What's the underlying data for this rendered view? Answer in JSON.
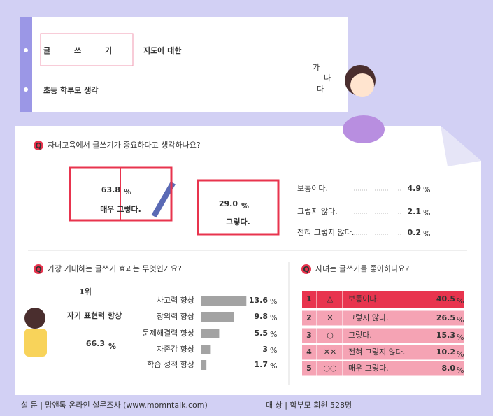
{
  "title": {
    "boxed": [
      "글",
      "쓰",
      "기"
    ],
    "rest": "지도에 대한",
    "line2": "초등 학부모 생각"
  },
  "deco": [
    "가",
    "나",
    "다"
  ],
  "icon": "Q",
  "unit": "%",
  "chart_data": [
    {
      "type": "highlight",
      "question": "자녀교육에서 글쓰기가 중요하다고 생각하나요?",
      "categories": [
        "매우 그렇다.",
        "그렇다.",
        "보통이다.",
        "그렇지 않다.",
        "전혀 그렇지 않다."
      ],
      "values": [
        63.8,
        29.0,
        4.9,
        2.1,
        0.2
      ],
      "value_labels": [
        "63.8",
        "29.0",
        "4.9",
        "2.1",
        "0.2"
      ],
      "color": "#e8344e"
    },
    {
      "type": "bar",
      "question": "가장 기대하는 글쓰기 효과는 무엇인가요?",
      "top": {
        "rank": "1위",
        "name": "자기 표현력 향상",
        "value": 66.3
      },
      "categories": [
        "사고력 향상",
        "창의력 향상",
        "문제해결력 향상",
        "자존감 향상",
        "학습 성적 향상"
      ],
      "values": [
        13.6,
        9.8,
        5.5,
        3.0,
        1.7
      ],
      "color": "#a3a3a3"
    },
    {
      "type": "rank",
      "question": "자녀는 글쓰기를 좋아하나요?",
      "ranks": [
        1,
        2,
        3,
        4,
        5
      ],
      "symbols": [
        "△",
        "✕",
        "○",
        "✕✕",
        "○○"
      ],
      "categories": [
        "보통이다.",
        "그렇지 않다.",
        "그렇다.",
        "전혀 그렇지 않다.",
        "매우 그렇다."
      ],
      "values": [
        40.5,
        26.5,
        15.3,
        10.2,
        8.0
      ],
      "value_labels": [
        "40.5",
        "26.5",
        "15.3",
        "10.2",
        "8.0"
      ],
      "colors": [
        "#e8344e",
        "#f5a3b4"
      ]
    }
  ],
  "footer": [
    "설 문 | 맘앤톡 온라인 설문조사 (www.momntalk.com)",
    "대 상 | 학부모 회원 528명"
  ]
}
